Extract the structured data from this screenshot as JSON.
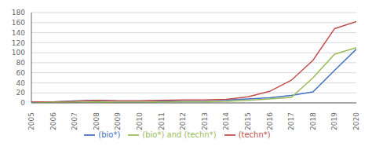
{
  "chart_data": {
    "type": "line",
    "x": [
      2005,
      2006,
      2007,
      2008,
      2009,
      2010,
      2011,
      2012,
      2013,
      2014,
      2015,
      2016,
      2017,
      2018,
      2019,
      2020
    ],
    "series": [
      {
        "name": "(bio*)",
        "color": "#4472C4",
        "values": [
          1,
          2,
          4,
          5,
          4,
          4,
          4,
          5,
          5,
          6,
          8,
          10,
          15,
          22,
          65,
          107
        ]
      },
      {
        "name": "(techn*)",
        "color": "#C0504D",
        "values": [
          2,
          2,
          3,
          5,
          4,
          4,
          5,
          6,
          6,
          7,
          12,
          23,
          45,
          85,
          148,
          162
        ]
      },
      {
        "name": "(bio*) and (techn*)",
        "color": "#9BBB59",
        "values": [
          0,
          1,
          1,
          2,
          1,
          1,
          2,
          2,
          2,
          3,
          5,
          8,
          11,
          50,
          97,
          110
        ]
      }
    ],
    "xlim": [
      2005,
      2020
    ],
    "xticks": [
      2005,
      2006,
      2007,
      2008,
      2009,
      2010,
      2011,
      2012,
      2013,
      2014,
      2015,
      2016,
      2017,
      2018,
      2019,
      2020
    ],
    "ylim": [
      0,
      180
    ],
    "yticks": [
      0,
      20,
      40,
      60,
      80,
      100,
      120,
      140,
      160,
      180
    ],
    "grid": true,
    "legend": "bottom"
  }
}
